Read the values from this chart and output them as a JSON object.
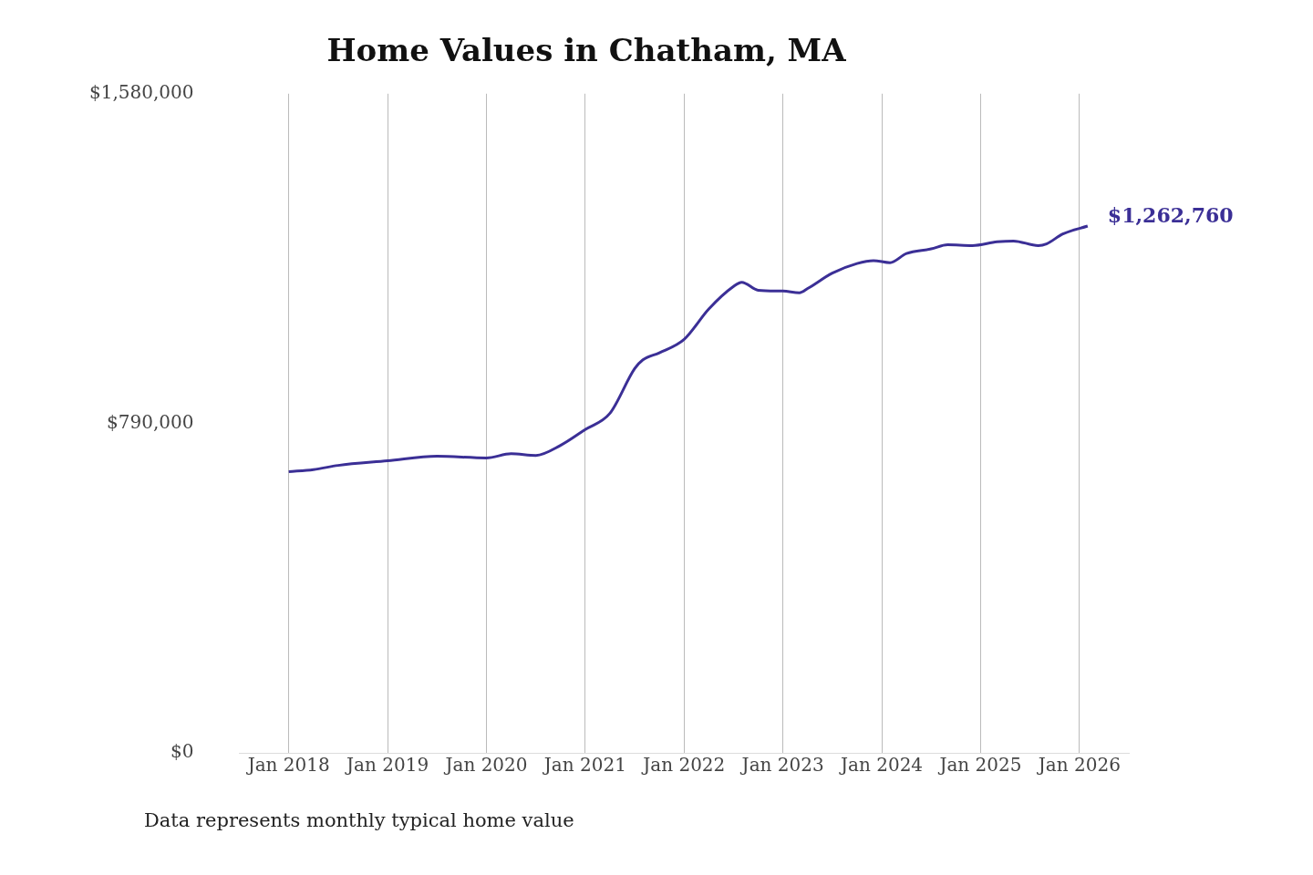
{
  "chart_data": {
    "type": "line",
    "title": "Home Values in Chatham, MA",
    "x": [
      "2018-01",
      "2018-04",
      "2018-07",
      "2019-01",
      "2019-07",
      "2020-01",
      "2020-04",
      "2020-07",
      "2020-10",
      "2021-01",
      "2021-04",
      "2021-07",
      "2021-08",
      "2021-10",
      "2022-01",
      "2022-04",
      "2022-07",
      "2022-08",
      "2022-10",
      "2023-01",
      "2023-03",
      "2023-04",
      "2023-07",
      "2023-10",
      "2023-12",
      "2024-02",
      "2024-04",
      "2024-07",
      "2024-09",
      "2024-12",
      "2025-03",
      "2025-05",
      "2025-08",
      "2025-09",
      "2025-11",
      "2026-02"
    ],
    "series": [
      {
        "color": "#3b2f96",
        "values": [
          674000,
          679000,
          689000,
          700000,
          711000,
          707000,
          717000,
          713000,
          737000,
          775000,
          814000,
          921000,
          942000,
          959000,
          991000,
          1064000,
          1118000,
          1128000,
          1109000,
          1107000,
          1103000,
          1113000,
          1150000,
          1173000,
          1180000,
          1175000,
          1197000,
          1208000,
          1218000,
          1216000,
          1225000,
          1227000,
          1216000,
          1220000,
          1244000,
          1262760
        ]
      }
    ],
    "xticks": [
      {
        "value": "2018-01",
        "label": "Jan 2018"
      },
      {
        "value": "2019-01",
        "label": "Jan 2019"
      },
      {
        "value": "2020-01",
        "label": "Jan 2020"
      },
      {
        "value": "2021-01",
        "label": "Jan 2021"
      },
      {
        "value": "2022-01",
        "label": "Jan 2022"
      },
      {
        "value": "2023-01",
        "label": "Jan 2023"
      },
      {
        "value": "2024-01",
        "label": "Jan 2024"
      },
      {
        "value": "2025-01",
        "label": "Jan 2025"
      },
      {
        "value": "2026-01",
        "label": "Jan 2026"
      }
    ],
    "xlim": [
      "2017-07",
      "2026-07"
    ],
    "ylim": [
      0,
      1580000
    ],
    "yticks": [
      {
        "value": 0,
        "label": "$0"
      },
      {
        "value": 790000,
        "label": "$790,000"
      },
      {
        "value": 1580000,
        "label": "$1,580,000"
      }
    ],
    "grid": "x",
    "legend": false,
    "marker": "none",
    "line_style": "solid",
    "annotations": [
      {
        "text": "$1,262,760",
        "x": "2026-02",
        "y": 1262760
      },
      "Data represents monthly typical home value"
    ]
  }
}
